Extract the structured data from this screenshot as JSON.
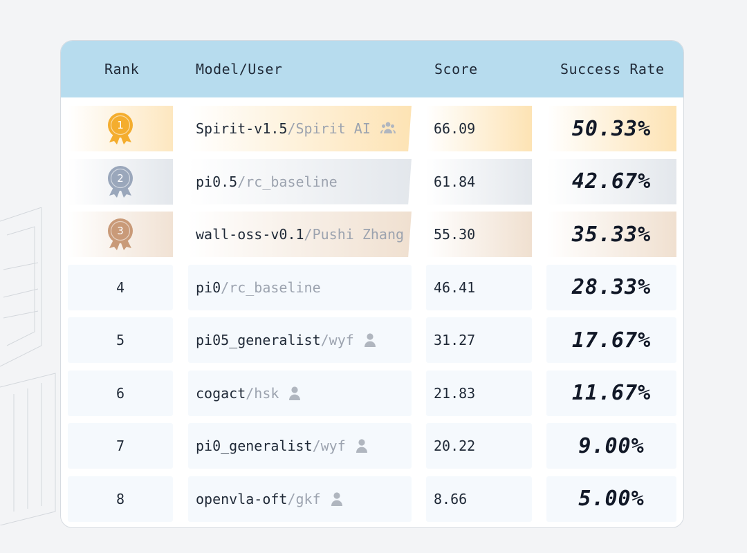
{
  "table": {
    "headers": {
      "rank": "Rank",
      "model_user": "Model/User",
      "score": "Score",
      "success_rate": "Success Rate"
    },
    "rows": [
      {
        "rank": "1",
        "medal": "gold-medal-icon",
        "model": "Spirit-v1.5",
        "user": "/Spirit AI",
        "user_icon": "group-icon",
        "score": "66.09",
        "success_rate": "50.33%"
      },
      {
        "rank": "2",
        "medal": "silver-medal-icon",
        "model": "pi0.5",
        "user": "/rc_baseline",
        "user_icon": "",
        "score": "61.84",
        "success_rate": "42.67%"
      },
      {
        "rank": "3",
        "medal": "bronze-medal-icon",
        "model": "wall-oss-v0.1",
        "user": "/Pushi Zhang",
        "user_icon": "",
        "score": "55.30",
        "success_rate": "35.33%"
      },
      {
        "rank": "4",
        "medal": "",
        "model": "pi0",
        "user": "/rc_baseline",
        "user_icon": "",
        "score": "46.41",
        "success_rate": "28.33%"
      },
      {
        "rank": "5",
        "medal": "",
        "model": "pi05_generalist",
        "user": "/wyf",
        "user_icon": "user-icon",
        "score": "31.27",
        "success_rate": "17.67%"
      },
      {
        "rank": "6",
        "medal": "",
        "model": "cogact",
        "user": "/hsk",
        "user_icon": "user-icon",
        "score": "21.83",
        "success_rate": "11.67%"
      },
      {
        "rank": "7",
        "medal": "",
        "model": "pi0_generalist",
        "user": "/wyf",
        "user_icon": "user-icon",
        "score": "20.22",
        "success_rate": "9.00%"
      },
      {
        "rank": "8",
        "medal": "",
        "model": "openvla-oft",
        "user": "/gkf",
        "user_icon": "user-icon",
        "score": "8.66",
        "success_rate": "5.00%"
      }
    ]
  },
  "colors": {
    "header_bg": "#b7dcee",
    "gold": "#f4ad2e",
    "silver": "#9aa7bb",
    "bronze": "#c99a78",
    "user_gray": "#9ca3af"
  }
}
